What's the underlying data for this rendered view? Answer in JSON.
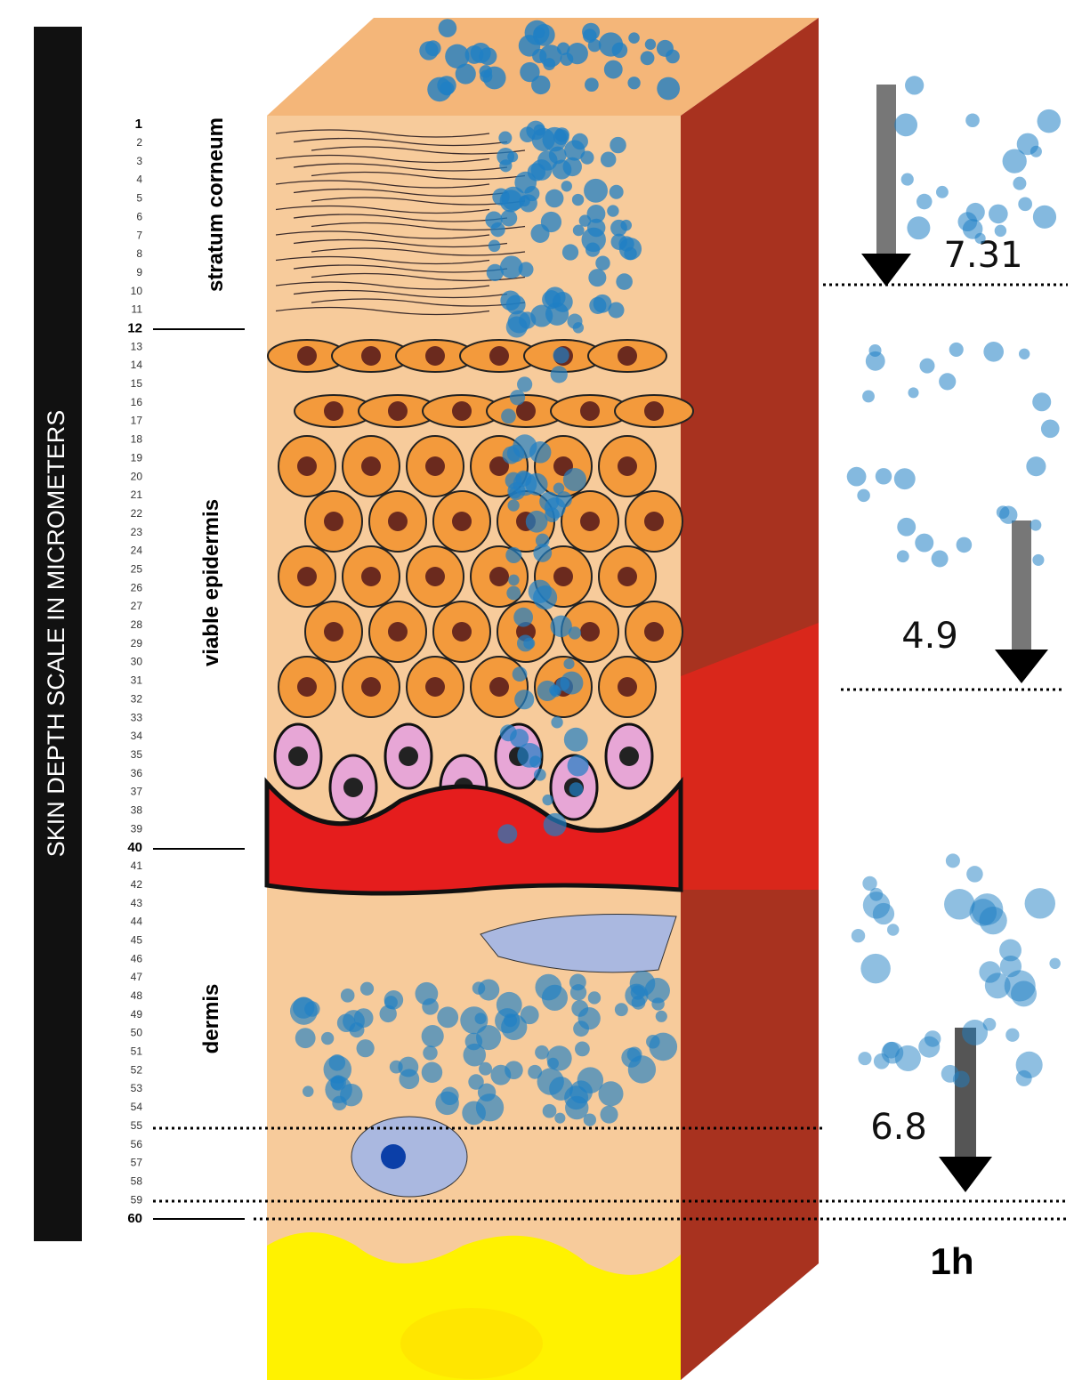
{
  "scale_title": "SKIN DEPTH SCALE IN MICROMETERS",
  "depth_ticks": [
    1,
    2,
    3,
    4,
    5,
    6,
    7,
    8,
    9,
    10,
    11,
    12,
    13,
    14,
    15,
    16,
    17,
    18,
    19,
    20,
    21,
    22,
    23,
    24,
    25,
    26,
    27,
    28,
    29,
    30,
    31,
    32,
    33,
    34,
    35,
    36,
    37,
    38,
    39,
    40,
    41,
    42,
    43,
    44,
    45,
    46,
    47,
    48,
    49,
    50,
    51,
    52,
    53,
    54,
    55,
    56,
    57,
    58,
    59,
    60
  ],
  "layers": [
    {
      "label": "stratum corneum"
    },
    {
      "label": "viable epidermis"
    },
    {
      "label": "dermis"
    }
  ],
  "arrows": [
    {
      "label": "7.31"
    },
    {
      "label": "4.9"
    },
    {
      "label": "6.8"
    }
  ],
  "time_label": "1h"
}
